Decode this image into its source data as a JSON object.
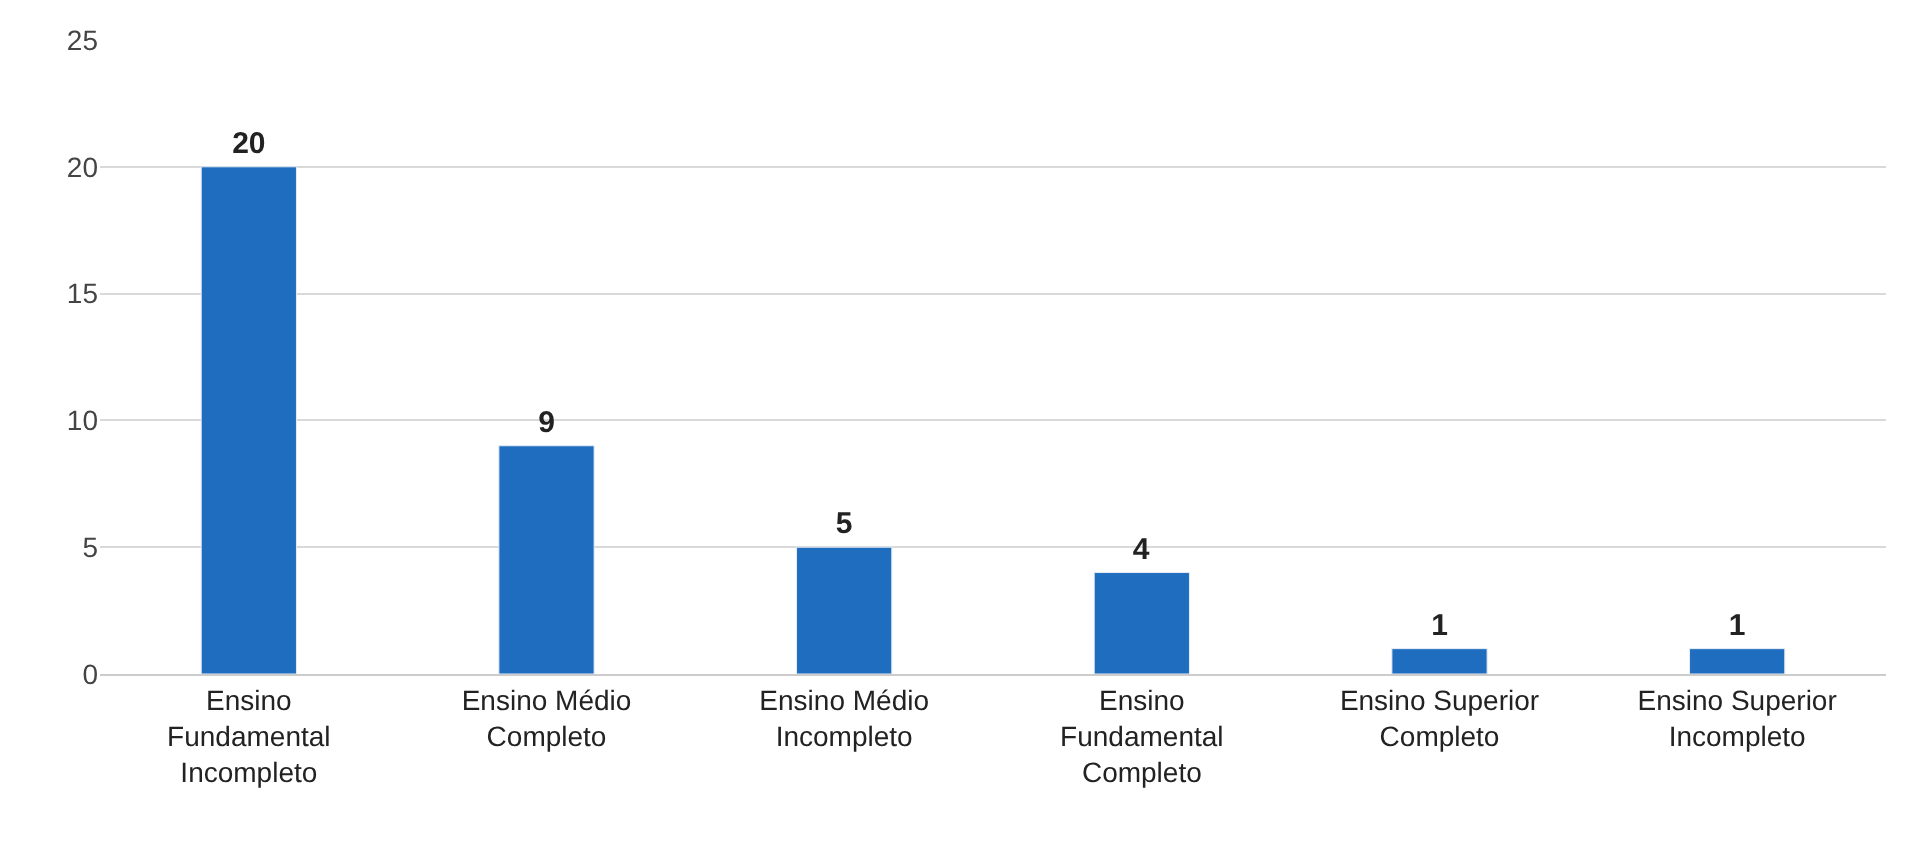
{
  "chart_data": {
    "type": "bar",
    "categories": [
      "Ensino Fundamental Incompleto",
      "Ensino Médio Completo",
      "Ensino Médio Incompleto",
      "Ensino Fundamental Completo",
      "Ensino Superior Completo",
      "Ensino Superior Incompleto"
    ],
    "values": [
      20,
      9,
      5,
      4,
      1,
      1
    ],
    "color": "#1f6dbf",
    "ylim": [
      0,
      25
    ],
    "yticks": [
      0,
      5,
      10,
      15,
      20,
      25
    ],
    "grid": "y",
    "data_labels": true,
    "legend": false
  }
}
